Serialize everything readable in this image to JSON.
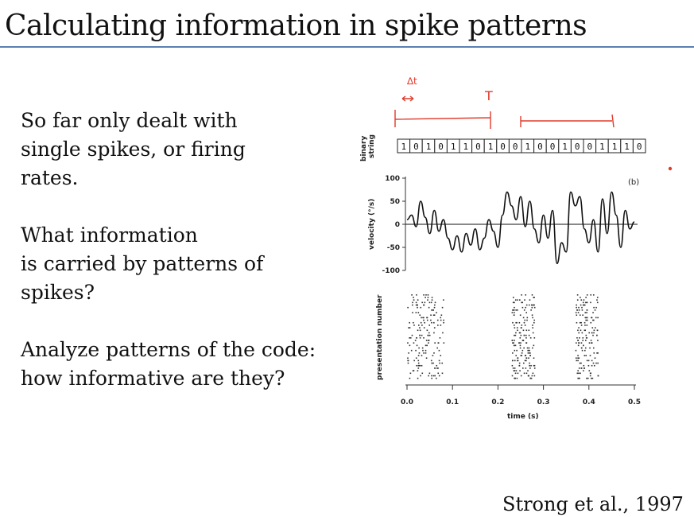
{
  "slide": {
    "title": "Calculating information in spike patterns",
    "paragraphs": [
      [
        "So far only dealt with",
        "single spikes, or firing",
        "rates."
      ],
      [
        "What information",
        "is carried by patterns of",
        "spikes?"
      ],
      [
        "Analyze patterns of the code:",
        "how informative are they?"
      ]
    ],
    "citation": "Strong et al., 1997"
  },
  "annotations": {
    "delta_t": "∆t",
    "T": "T",
    "color": "#e03b2c"
  },
  "figure": {
    "binary_label_1": "binary",
    "binary_label_2": "string",
    "bits": [
      "1",
      "0",
      "1",
      "0",
      "1",
      "1",
      "0",
      "1",
      "0",
      "0",
      "1",
      "0",
      "0",
      "1",
      "0",
      "0",
      "1",
      "1",
      "1",
      "0"
    ],
    "panel_label": "(b)",
    "ylabel_velocity": "velocity (°/s)",
    "ylabel_raster": "presentation number",
    "xlabel": "time (s)",
    "yticks": [
      "100",
      "50",
      "0",
      "-50",
      "-100"
    ],
    "xticks": [
      "0.0",
      "0.1",
      "0.2",
      "0.3",
      "0.4",
      "0.5"
    ]
  },
  "chart_data": {
    "type": "line",
    "xlabel": "time (s)",
    "ylabel": "velocity (°/s)",
    "xlim": [
      0,
      0.5
    ],
    "ylim": [
      -100,
      100
    ],
    "x": [
      0.0,
      0.01,
      0.02,
      0.03,
      0.04,
      0.05,
      0.06,
      0.07,
      0.08,
      0.09,
      0.1,
      0.11,
      0.12,
      0.13,
      0.14,
      0.15,
      0.16,
      0.17,
      0.18,
      0.19,
      0.2,
      0.21,
      0.22,
      0.23,
      0.24,
      0.25,
      0.26,
      0.27,
      0.28,
      0.29,
      0.3,
      0.31,
      0.32,
      0.33,
      0.34,
      0.35,
      0.36,
      0.37,
      0.38,
      0.39,
      0.4,
      0.41,
      0.42,
      0.43,
      0.44,
      0.45,
      0.46,
      0.47,
      0.48,
      0.49,
      0.5
    ],
    "series": [
      {
        "values": [
          10,
          20,
          -5,
          50,
          15,
          -20,
          30,
          -15,
          10,
          -30,
          -55,
          -25,
          -60,
          -20,
          -45,
          -10,
          -55,
          -30,
          10,
          -15,
          -50,
          20,
          70,
          40,
          10,
          60,
          -5,
          50,
          -10,
          -40,
          20,
          -30,
          30,
          -85,
          -40,
          -60,
          70,
          40,
          60,
          -10,
          -40,
          10,
          -60,
          55,
          -20,
          70,
          20,
          -50,
          30,
          -10,
          5
        ]
      }
    ]
  },
  "raster": {
    "ylabel": "presentation number",
    "bursts_s": [
      [
        0.0,
        0.08
      ],
      [
        0.23,
        0.28
      ],
      [
        0.37,
        0.42
      ]
    ]
  }
}
